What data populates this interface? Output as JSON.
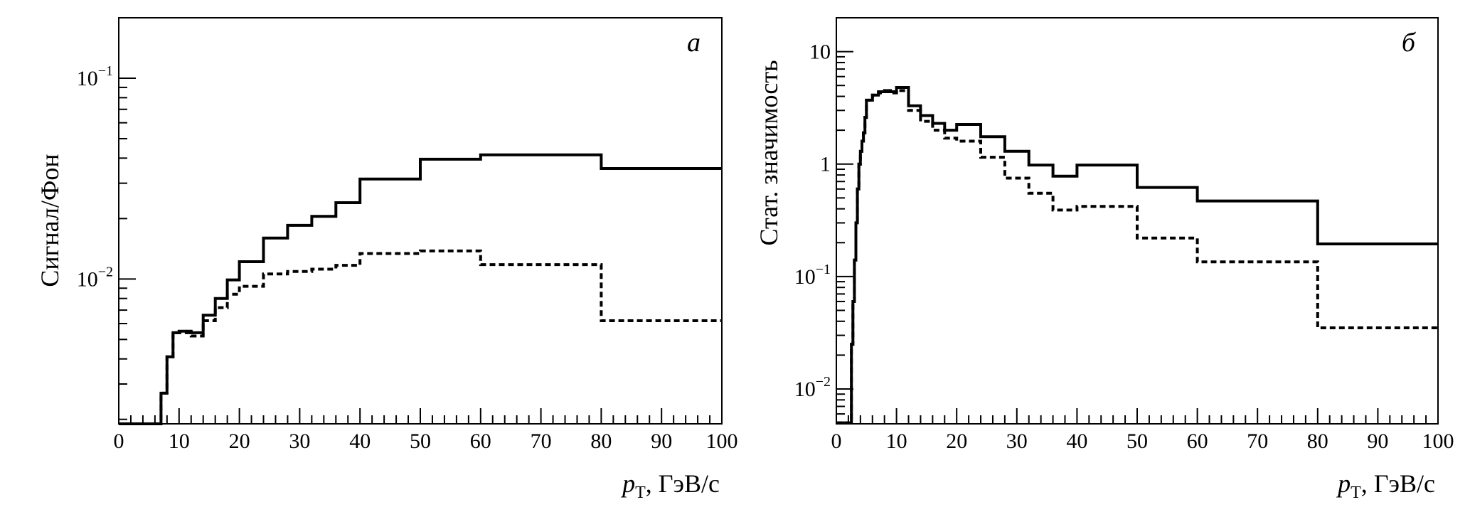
{
  "chart_data": [
    {
      "type": "line",
      "panel_label": "а",
      "xlabel": "p_T, ГэВ/с",
      "xlabel_parts": {
        "var": "p",
        "sub": "T",
        "rest": ", ГэВ/с"
      },
      "ylabel": "Сигнал/Фон",
      "xlim": [
        0,
        100
      ],
      "ylim": [
        0.0019,
        0.2
      ],
      "yscale": "log",
      "x_tick_labels": [
        "0",
        "10",
        "20",
        "30",
        "40",
        "50",
        "60",
        "70",
        "80",
        "90",
        "100"
      ],
      "y_tick_labels": [
        {
          "value": 0.1,
          "base": "10",
          "exp": "−1"
        },
        {
          "value": 0.01,
          "base": "10",
          "exp": "−2"
        }
      ],
      "series": [
        {
          "style": "solid",
          "edges": [
            0,
            7,
            8,
            9,
            10,
            12,
            14,
            16,
            18,
            20,
            24,
            28,
            32,
            36,
            40,
            50,
            60,
            80,
            100
          ],
          "values": [
            0.0019,
            0.0027,
            0.0041,
            0.0054,
            0.0055,
            0.0054,
            0.0066,
            0.008,
            0.0099,
            0.0122,
            0.016,
            0.0185,
            0.0205,
            0.024,
            0.0315,
            0.0395,
            0.0415,
            0.0355
          ]
        },
        {
          "style": "dashed",
          "edges": [
            0,
            7,
            8,
            9,
            10,
            12,
            14,
            16,
            18,
            20,
            24,
            28,
            32,
            36,
            40,
            50,
            60,
            80,
            100
          ],
          "values": [
            0.0019,
            0.0027,
            0.0041,
            0.0054,
            0.0054,
            0.0052,
            0.0062,
            0.0072,
            0.0084,
            0.0092,
            0.0106,
            0.0109,
            0.0112,
            0.0117,
            0.0134,
            0.0138,
            0.0118,
            0.0062
          ]
        }
      ]
    },
    {
      "type": "line",
      "panel_label": "б",
      "xlabel": "p_T, ГэВ/с",
      "xlabel_parts": {
        "var": "p",
        "sub": "T",
        "rest": ", ГэВ/с"
      },
      "ylabel": "Стат. значимость",
      "xlim": [
        0,
        100
      ],
      "ylim": [
        0.0049,
        20
      ],
      "yscale": "log",
      "x_tick_labels": [
        "0",
        "10",
        "20",
        "30",
        "40",
        "50",
        "60",
        "70",
        "80",
        "90",
        "100"
      ],
      "y_tick_labels": [
        {
          "value": 10,
          "base": "10",
          "exp": ""
        },
        {
          "value": 1,
          "base": "1",
          "exp": ""
        },
        {
          "value": 0.1,
          "base": "10",
          "exp": "−1"
        },
        {
          "value": 0.01,
          "base": "10",
          "exp": "−2"
        }
      ],
      "series": [
        {
          "style": "solid",
          "edges": [
            0,
            2.5,
            2.75,
            3,
            3.25,
            3.5,
            3.75,
            4,
            4.25,
            4.5,
            4.75,
            5,
            6,
            7,
            8,
            9,
            10,
            12,
            14,
            16,
            18,
            20,
            24,
            28,
            32,
            36,
            40,
            50,
            60,
            80,
            100
          ],
          "values": [
            0.005,
            0.025,
            0.06,
            0.14,
            0.3,
            0.6,
            1.0,
            1.3,
            1.6,
            1.9,
            2.6,
            3.7,
            4.1,
            4.4,
            4.5,
            4.4,
            4.8,
            3.3,
            2.7,
            2.3,
            2.0,
            2.25,
            1.75,
            1.3,
            0.98,
            0.78,
            0.98,
            0.62,
            0.47,
            0.195
          ]
        },
        {
          "style": "dashed",
          "edges": [
            0,
            2.5,
            2.75,
            3,
            3.25,
            3.5,
            3.75,
            4,
            4.25,
            4.5,
            4.75,
            5,
            6,
            7,
            8,
            9,
            10,
            12,
            14,
            16,
            18,
            20,
            24,
            28,
            32,
            36,
            40,
            50,
            60,
            80,
            100
          ],
          "values": [
            0.005,
            0.025,
            0.06,
            0.14,
            0.3,
            0.6,
            1.0,
            1.3,
            1.6,
            1.9,
            2.6,
            3.7,
            4.1,
            4.3,
            4.4,
            4.3,
            4.5,
            3.0,
            2.4,
            2.0,
            1.7,
            1.6,
            1.15,
            0.75,
            0.55,
            0.39,
            0.42,
            0.22,
            0.135,
            0.035
          ]
        }
      ]
    }
  ]
}
